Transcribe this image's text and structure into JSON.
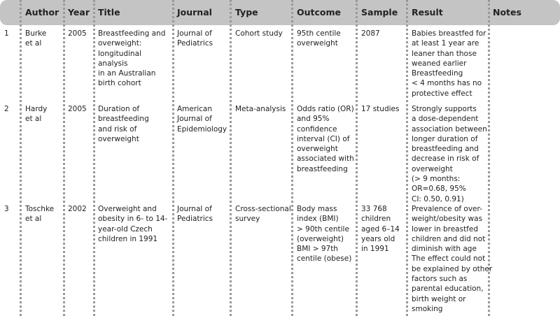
{
  "table": {
    "columns": [
      "",
      "Author",
      "Year",
      "Title",
      "Journal",
      "Type",
      "Outcome",
      "Sample",
      "Result",
      "Notes"
    ],
    "rows": [
      [
        [
          "1"
        ],
        [
          "Burke",
          "et al"
        ],
        [
          "2005"
        ],
        [
          "Breastfeeding and",
          "overweight:",
          "longitudinal",
          "analysis",
          "in an Australian",
          "birth cohort"
        ],
        [
          "Journal of",
          "Pediatrics"
        ],
        [
          "Cohort study"
        ],
        [
          "95th centile",
          "overweight"
        ],
        [
          "2087"
        ],
        [
          "Babies breastfed for",
          "at least 1 year are",
          "leaner than those",
          "weaned earlier",
          "Breastfeeding",
          "< 4 months has no",
          "protective effect"
        ],
        []
      ],
      [
        [
          "2"
        ],
        [
          "Hardy",
          "et al"
        ],
        [
          "2005"
        ],
        [
          "Duration of",
          "breastfeeding",
          "and risk of",
          "overweight"
        ],
        [
          "American",
          "Journal of",
          "Epidemiology"
        ],
        [
          "Meta-analysis"
        ],
        [
          "Odds ratio (OR)",
          "and 95%",
          "confidence",
          "interval (CI) of",
          "overweight",
          "associated with",
          "breastfeeding"
        ],
        [
          "17 studies"
        ],
        [
          "Strongly supports",
          "a dose-dependent",
          "association between",
          "longer duration of",
          "breastfeeding and",
          "decrease in risk of",
          "overweight",
          "(> 9 months:",
          "OR=0.68, 95%",
          "CI: 0.50, 0.91)"
        ],
        []
      ],
      [
        [
          "3"
        ],
        [
          "Toschke",
          "et al"
        ],
        [
          "2002"
        ],
        [
          "Overweight and",
          "obesity in 6- to 14-",
          "year-old Czech",
          "children in 1991"
        ],
        [
          "Journal of",
          "Pediatrics"
        ],
        [
          "Cross-sectional",
          "survey"
        ],
        [
          "Body mass",
          "index (BMI)",
          "> 90th centile",
          "(overweight)",
          "BMI > 97th",
          "centile (obese)"
        ],
        [
          "33 768",
          "children",
          "aged 6–14",
          "years old",
          "in 1991"
        ],
        [
          "Prevalence of over-",
          "weight/obesity was",
          "lower in breastfed",
          "children and did not",
          "diminish with age",
          "The effect could not",
          "be explained by other",
          "factors such as",
          "parental education,",
          "birth weight or",
          "smoking"
        ],
        []
      ]
    ]
  }
}
